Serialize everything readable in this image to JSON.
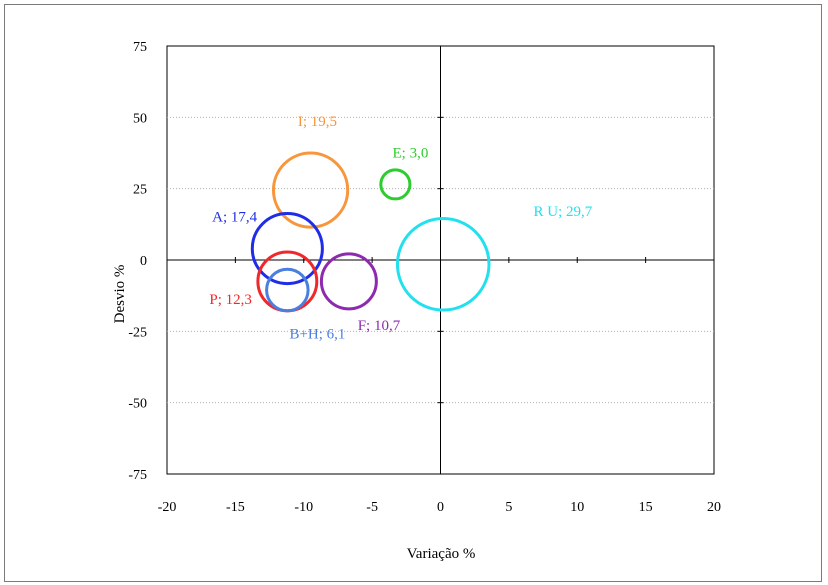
{
  "chart_data": {
    "type": "bubble",
    "title": "",
    "xlabel": "Variação %",
    "ylabel": "Desvio %",
    "xlim": [
      -20,
      20
    ],
    "ylim": [
      -75,
      75
    ],
    "xticks": [
      -20,
      -15,
      -10,
      -5,
      0,
      5,
      10,
      15,
      20
    ],
    "yticks": [
      75,
      50,
      25,
      0,
      -25,
      -50,
      -75
    ],
    "grid": "horizontal dotted",
    "series": [
      {
        "label": "I; 19,5",
        "x": -9.5,
        "y": 24.5,
        "size": 19.5,
        "color": "#f7963b"
      },
      {
        "label": "E; 3,0",
        "x": -3.3,
        "y": 26.5,
        "size": 3.0,
        "color": "#2ecc2e"
      },
      {
        "label": "A; 17,4",
        "x": -11.2,
        "y": 4.0,
        "size": 17.4,
        "color": "#1f2ee6"
      },
      {
        "label": "R U; 29,7",
        "x": 0.2,
        "y": -1.5,
        "size": 29.7,
        "color": "#22e0ee"
      },
      {
        "label": "P; 12,3",
        "x": -11.2,
        "y": -7.5,
        "size": 12.3,
        "color": "#f0282a"
      },
      {
        "label": "B+H; 6,1",
        "x": -11.2,
        "y": -10.5,
        "size": 6.1,
        "color": "#4a7fe0"
      },
      {
        "label": "F; 10,7",
        "x": -6.7,
        "y": -7.5,
        "size": 10.7,
        "color": "#8e2ab0"
      }
    ]
  }
}
